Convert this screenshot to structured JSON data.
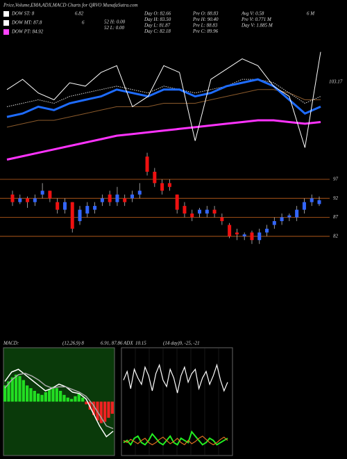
{
  "chart_data": [
    {
      "type": "header",
      "title": "Price,Volume,EMA,ADX,MACD Charts for QRVO MunafaSutra.com",
      "legend": [
        {
          "name": "DOW ST: 8",
          "value": "6.82",
          "color": "#ffffff"
        },
        {
          "name": "DOW MT: 87.8",
          "value": "6",
          "color": "#ffffff"
        },
        {
          "name": "DOW PT: 84.92",
          "value": "",
          "color": "#ff44ff"
        }
      ],
      "stats": [
        [
          "52 H: 0.00",
          "52 L: 0.00"
        ],
        [
          "Day O: 82.66",
          "Day H: 83.50",
          "Day L: 81.87",
          "Day C: 82.18"
        ],
        [
          "Pre O: 88.83",
          "Pre H: 90.40",
          "Pre L: 88.83",
          "Pre C: 89.96"
        ],
        [
          "Avg V: 0.58",
          "Pre V: 0.771 M",
          "Day V: 1.885 M"
        ],
        [
          "6 M"
        ]
      ]
    },
    {
      "type": "line",
      "ylim": [
        80,
        115
      ],
      "label": "103.17",
      "label_value": 103.17,
      "series": [
        {
          "color": "#ff33ff",
          "width": 3,
          "values": [
            80.5,
            81.5,
            82.5,
            83.5,
            84.5,
            85.5,
            86.5,
            87.5,
            88,
            88.5,
            89,
            89.5,
            90,
            90.5,
            91,
            91.5,
            92,
            92,
            91.5,
            91,
            91.5
          ]
        },
        {
          "color": "#8b5a2b",
          "width": 1,
          "values": [
            90,
            91,
            92,
            92,
            93,
            94,
            95,
            96,
            96,
            96,
            97,
            97,
            97,
            98,
            99,
            100,
            101,
            101,
            100,
            98,
            98
          ]
        },
        {
          "color": "#dddddd",
          "width": 1,
          "dash": true,
          "values": [
            96,
            97,
            98,
            97,
            99,
            100,
            101,
            102,
            101,
            100,
            102,
            101,
            100,
            101,
            102,
            104,
            104,
            103,
            100,
            97,
            99
          ]
        },
        {
          "color": "#1e6cff",
          "width": 3,
          "values": [
            93,
            94,
            96,
            95,
            97,
            98,
            99,
            101,
            100,
            99,
            101,
            101,
            99,
            100,
            102,
            103,
            104,
            102,
            98,
            94,
            96
          ]
        },
        {
          "color": "#ffffff",
          "width": 1,
          "values": [
            101,
            104,
            100,
            98,
            103,
            102,
            106,
            108,
            96,
            99,
            108,
            106,
            86,
            104,
            107,
            110,
            108,
            102,
            99,
            84,
            112
          ]
        }
      ]
    },
    {
      "type": "candlestick",
      "ylim": [
        78.3,
        107.6
      ],
      "yticks": [
        97,
        92,
        87,
        82
      ],
      "up_color": "#3366ff",
      "down_color": "#ee1111",
      "grid_color": "#c8641e",
      "open": [
        93,
        91,
        92,
        91,
        93,
        94,
        91,
        89,
        91,
        86,
        88,
        89,
        91,
        93,
        91,
        92,
        92,
        93,
        103,
        99,
        96,
        96,
        93,
        90,
        88,
        88,
        88,
        89,
        87,
        85,
        83,
        82,
        83,
        81,
        83,
        85,
        86,
        87,
        87,
        89,
        91,
        90.5
      ],
      "close": [
        91,
        92,
        91,
        92,
        94,
        92,
        89,
        91,
        84,
        89,
        90,
        90,
        92,
        91,
        93,
        91,
        93,
        94,
        99,
        96,
        94,
        95,
        89,
        88,
        87,
        89,
        89,
        88,
        86,
        82,
        82.5,
        82.5,
        81,
        83,
        84,
        86,
        87,
        87.5,
        89,
        91,
        92,
        91.5
      ],
      "high": [
        94,
        93,
        92.5,
        93,
        96,
        94,
        92,
        92,
        91,
        90,
        91,
        91,
        93,
        94,
        95,
        93,
        94,
        96,
        104,
        100,
        97,
        97,
        93,
        91,
        89,
        89.5,
        90,
        90,
        88,
        85.5,
        84,
        83,
        83.5,
        84,
        85,
        87,
        88,
        88,
        90,
        92,
        93,
        92.5
      ],
      "low": [
        90,
        90.5,
        89.5,
        90,
        92,
        91,
        88,
        88,
        83,
        85,
        87,
        88,
        90,
        90,
        90,
        90,
        91,
        92,
        98,
        95,
        93,
        94,
        88,
        87,
        86,
        87,
        87,
        87,
        85,
        81.5,
        81,
        81,
        80,
        80,
        82,
        84,
        85,
        86,
        86,
        88,
        90,
        90
      ]
    },
    {
      "type": "macd",
      "title": "MACD:",
      "params": "(12,26,9) 8",
      "reading": "6.91, 87.86",
      "ylim": [
        -4,
        4
      ],
      "bg": "#0a3a0a",
      "pos_color": "#22dd22",
      "neg_color": "#ee2222",
      "histogram": [
        1.2,
        1.5,
        1.8,
        2,
        1.9,
        1.6,
        1.2,
        1,
        0.8,
        0.6,
        0.5,
        0.7,
        0.9,
        1.1,
        1,
        0.8,
        0.5,
        0.3,
        0.2,
        0.4,
        0.6,
        0.3,
        -0.2,
        -0.6,
        -1,
        -1.4,
        -1.6,
        -1.5,
        -1.2,
        -0.9
      ],
      "lines": [
        {
          "color": "#ffffff",
          "values": [
            1.5,
            2.2,
            2.4,
            2,
            1.6,
            1.2,
            0.8,
            1,
            1.3,
            1.1,
            0.7,
            0.6,
            0.2,
            -0.8,
            -1.8,
            -2.6,
            -2.2
          ]
        },
        {
          "color": "#aaaaaa",
          "values": [
            1,
            1.6,
            2,
            2.1,
            1.9,
            1.6,
            1.2,
            1,
            1.1,
            1.1,
            0.9,
            0.7,
            0.4,
            -0.2,
            -1,
            -1.8,
            -2
          ]
        }
      ]
    },
    {
      "type": "adx",
      "title": "ADX",
      "reading": "10.15",
      "params": "(14 day)9, -25, -21",
      "ylim": [
        0,
        100
      ],
      "lines": [
        {
          "color": "#ffffff",
          "values": [
            70,
            78,
            62,
            80,
            72,
            66,
            82,
            74,
            60,
            76,
            84,
            70,
            64,
            80,
            72,
            58,
            74,
            82,
            68,
            76,
            80,
            62,
            72,
            78,
            66,
            74,
            84,
            70,
            60,
            68
          ]
        },
        {
          "color": "#22ee22",
          "values": [
            12,
            14,
            10,
            16,
            18,
            12,
            10,
            14,
            20,
            16,
            12,
            10,
            14,
            18,
            12,
            10,
            16,
            14,
            12,
            22,
            18,
            14,
            10,
            12,
            16,
            14,
            10,
            12,
            14,
            16
          ]
        },
        {
          "color": "#e07020",
          "values": [
            14,
            12,
            15,
            13,
            11,
            14,
            16,
            12,
            10,
            12,
            15,
            17,
            14,
            11,
            13,
            16,
            12,
            10,
            14,
            11,
            13,
            16,
            18,
            15,
            12,
            10,
            12,
            15,
            17,
            14
          ]
        }
      ]
    }
  ]
}
